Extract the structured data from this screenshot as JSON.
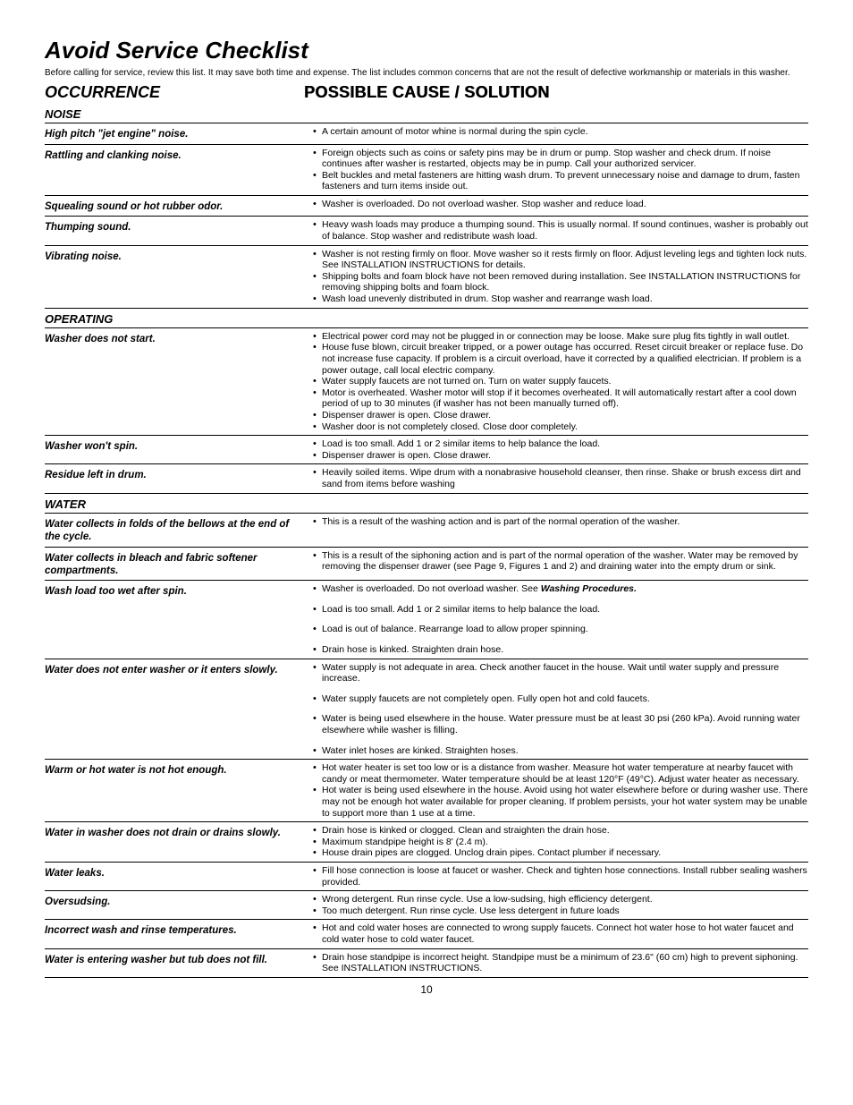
{
  "title": "Avoid Service Checklist",
  "intro": "Before calling for service, review this list. It may save both time and expense. The list includes common concerns that are not the result of defective workmanship or materials in this washer.",
  "headers": {
    "occurrence": "OCCURRENCE",
    "cause": "POSSIBLE CAUSE / SOLUTION"
  },
  "categories": [
    {
      "name": "NOISE",
      "rows": [
        {
          "occ": "High pitch \"jet engine\" noise.",
          "items": [
            {
              "text": "A certain amount of motor whine is normal during the spin cycle."
            }
          ]
        },
        {
          "occ": "Rattling and clanking noise.",
          "items": [
            {
              "text": "Foreign objects such as coins or safety pins may be in drum or pump. Stop washer and check drum. If noise continues after washer is restarted, objects may be in pump. Call your authorized servicer."
            },
            {
              "text": "Belt buckles and metal fasteners are hitting wash drum. To prevent unnecessary noise and damage to drum, fasten fasteners and turn items inside out."
            }
          ]
        },
        {
          "occ": "Squealing sound or hot rubber odor.",
          "items": [
            {
              "text": "Washer is overloaded. Do not overload washer. Stop washer and reduce load."
            }
          ]
        },
        {
          "occ": "Thumping sound.",
          "items": [
            {
              "text": "Heavy wash loads may produce a thumping sound. This is usually normal. If sound continues, washer is probably out of balance. Stop washer and redistribute wash load."
            }
          ]
        },
        {
          "occ": "Vibrating noise.",
          "items": [
            {
              "text": "Washer is not resting firmly on floor. Move washer so it rests firmly on floor. Adjust leveling legs and tighten lock nuts. See INSTALLATION INSTRUCTIONS for details."
            },
            {
              "text": "Shipping bolts and foam block have not been removed during installation. See INSTALLATION INSTRUCTIONS for removing shipping bolts and foam block."
            },
            {
              "text": "Wash load unevenly distributed in drum. Stop washer and rearrange wash load."
            }
          ]
        }
      ]
    },
    {
      "name": "OPERATING",
      "rows": [
        {
          "occ": "Washer does not start.",
          "items": [
            {
              "text": "Electrical power cord may not be plugged in or connection may be loose. Make sure plug fits tightly in wall outlet."
            },
            {
              "text": "House fuse blown, circuit breaker tripped, or a power outage has occurred. Reset circuit breaker or replace fuse. Do not increase fuse capacity. If problem is a circuit overload, have it corrected by a qualified electrician. If problem is a power outage, call local electric company."
            },
            {
              "text": "Water supply faucets are not turned on. Turn on water supply faucets."
            },
            {
              "text": "Motor is overheated. Washer motor will stop if it becomes overheated. It will automatically restart after a cool down period of up to 30 minutes (if washer has not been manually turned off)."
            },
            {
              "text": "Dispenser drawer is open.  Close drawer."
            },
            {
              "text": "Washer door is not completely closed.  Close door completely."
            }
          ]
        },
        {
          "occ": "Washer won't spin.",
          "items": [
            {
              "text": "Load is too small. Add 1 or 2 similar items to help balance the load."
            },
            {
              "text": "Dispenser drawer is open.  Close drawer."
            }
          ]
        },
        {
          "occ": "Residue left in drum.",
          "items": [
            {
              "text": "Heavily soiled items. Wipe drum with a nonabrasive household cleanser, then rinse. Shake or brush excess dirt and sand from items before washing"
            }
          ]
        }
      ]
    },
    {
      "name": "WATER",
      "rows": [
        {
          "occ": "Water collects in folds of the bellows at the end of the cycle.",
          "items": [
            {
              "text": "This is a result of the washing action and is part of the normal operation of the washer."
            }
          ]
        },
        {
          "occ": "Water collects in bleach and fabric softener compartments.",
          "items": [
            {
              "text": "This is a result of the siphoning action and is part of the normal operation of the washer. Water may be removed by removing the dispenser drawer (see Page 9, Figures 1 and 2) and draining water into the empty drum or sink."
            }
          ]
        },
        {
          "occ": "Wash load too wet after spin.",
          "items": [
            {
              "html": "Washer is overloaded. Do not overload washer. See <span class=\"bold-inline\">Washing Procedures.</span>"
            },
            {
              "text": "Load is too small. Add 1 or 2 similar items to help balance the load.",
              "gap": true
            },
            {
              "text": "Load is out of balance. Rearrange load to allow proper spinning.",
              "gap": true
            },
            {
              "text": "Drain hose is kinked. Straighten drain hose.",
              "gap": true
            }
          ]
        },
        {
          "occ": "Water does not enter washer or it enters slowly.",
          "items": [
            {
              "text": "Water supply is not adequate in area. Check another faucet in the house. Wait until water supply and pressure increase."
            },
            {
              "text": "Water supply faucets are not completely open. Fully open hot and cold faucets.",
              "gap": true
            },
            {
              "text": "Water is being used elsewhere in the house. Water pressure must be at least 30 psi (260 kPa). Avoid running water elsewhere while washer is filling.",
              "gap": true
            },
            {
              "text": "Water inlet hoses are kinked. Straighten hoses.",
              "gap": true
            }
          ]
        },
        {
          "occ": "Warm or hot water is not hot enough.",
          "items": [
            {
              "text": "Hot water heater is set too low or is a distance from washer. Measure hot water temperature at nearby faucet with candy or meat thermometer. Water temperature should be at least 120°F (49°C). Adjust water heater as necessary."
            },
            {
              "text": "Hot water is being used elsewhere in the house. Avoid using hot water elsewhere before or during washer use. There may not be enough hot water available for proper cleaning. If problem persists, your hot water system may be unable to support more than 1 use at a time."
            }
          ]
        },
        {
          "occ": "Water in washer does not drain or drains slowly.",
          "items": [
            {
              "text": "Drain hose is kinked or clogged. Clean and straighten the drain hose."
            },
            {
              "text": "Maximum standpipe height is 8' (2.4 m)."
            },
            {
              "text": "House drain pipes are clogged. Unclog drain pipes. Contact plumber if necessary."
            }
          ]
        },
        {
          "occ": "Water leaks.",
          "items": [
            {
              "text": "Fill hose connection is loose at faucet or washer. Check and tighten hose connections. Install rubber sealing washers provided."
            }
          ]
        },
        {
          "occ": "Oversudsing.",
          "items": [
            {
              "text": "Wrong detergent. Run rinse cycle.  Use a low-sudsing, high efficiency detergent."
            },
            {
              "text": "Too much detergent. Run rinse cycle.  Use less detergent in future loads"
            }
          ]
        },
        {
          "occ": "Incorrect wash and rinse temperatures.",
          "items": [
            {
              "text": "Hot and cold water hoses are connected to wrong supply faucets. Connect hot water hose to hot water faucet and cold water hose to cold water faucet."
            }
          ]
        },
        {
          "occ": "Water is entering washer but tub does not fill.",
          "items": [
            {
              "text": "Drain hose standpipe is incorrect height. Standpipe must be a minimum of 23.6\" (60 cm) high to prevent siphoning. See INSTALLATION INSTRUCTIONS."
            }
          ]
        }
      ]
    }
  ],
  "page_number": "10",
  "colors": {
    "text": "#000000",
    "background": "#ffffff",
    "rule": "#000000"
  }
}
